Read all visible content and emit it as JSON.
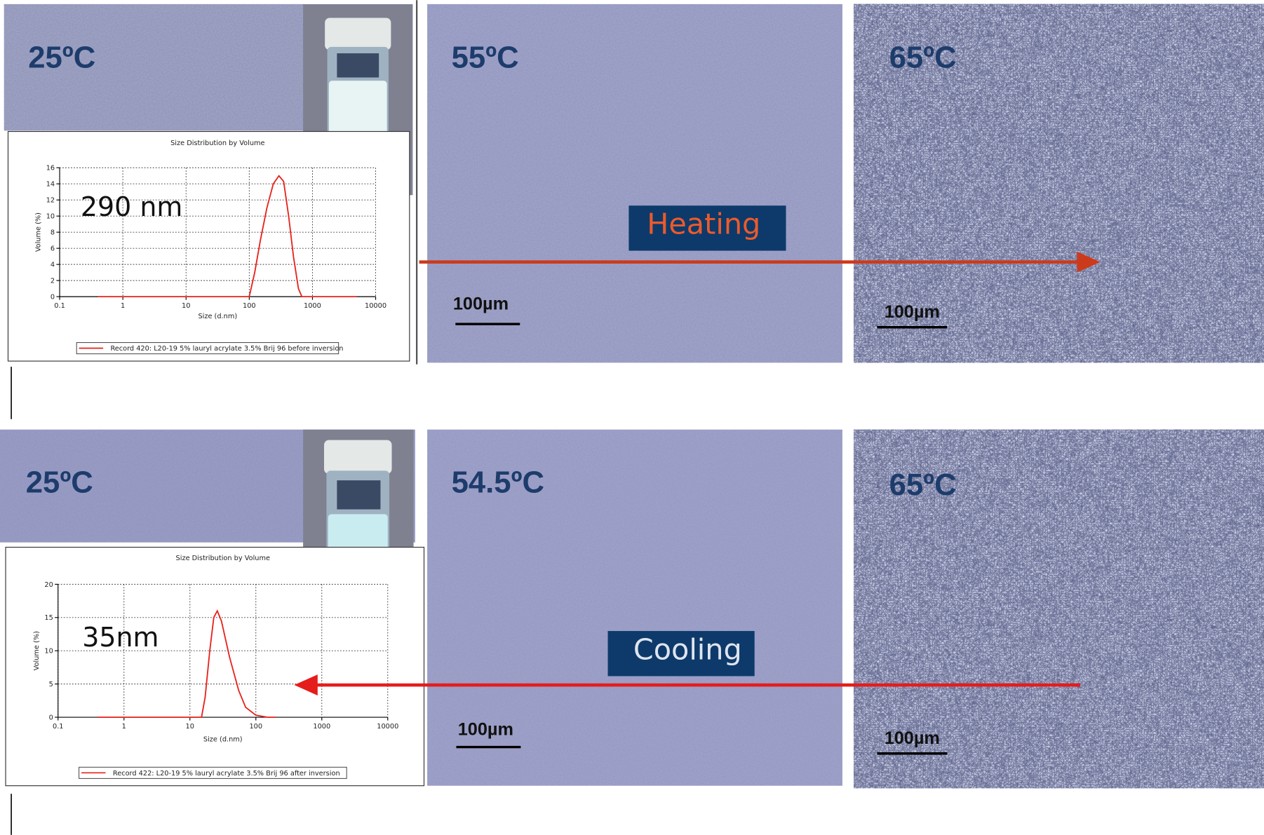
{
  "top_row": {
    "temperatures": [
      "25ºC",
      "55ºC",
      "65ºC"
    ],
    "scale_bars": [
      "100µm",
      "100µm"
    ],
    "process": "Heating"
  },
  "bottom_row": {
    "temperatures": [
      "25ºC",
      "54.5ºC",
      "65ºC"
    ],
    "scale_bars": [
      "100µm",
      "100µm"
    ],
    "process": "Cooling"
  },
  "chart_data": [
    {
      "type": "line",
      "title": "Size Distribution by Volume",
      "x_label": "Size (d.nm)",
      "y_label": "Volume (%)",
      "annotation": "290 nm",
      "xscale": "log",
      "xlim": [
        0.1,
        10000
      ],
      "xticks": [
        0.1,
        1,
        10,
        100,
        1000,
        10000
      ],
      "ylim": [
        0,
        16
      ],
      "yticks": [
        0,
        2,
        4,
        6,
        8,
        10,
        12,
        14,
        16
      ],
      "grid": true,
      "x": [
        0.4,
        100,
        122,
        150,
        190,
        240,
        295,
        350,
        420,
        500,
        600,
        680,
        5000
      ],
      "series": [
        {
          "name": "Record 420: L20-19 5% lauryl acrylate 3.5% Brij 96 before inversion",
          "color": "#e8221c",
          "values": [
            0,
            0,
            3,
            7,
            11,
            14,
            15,
            14.3,
            10,
            5,
            1,
            0,
            0
          ]
        }
      ]
    },
    {
      "type": "line",
      "title": "Size Distribution by Volume",
      "x_label": "Size (d.nm)",
      "y_label": "Volume (%)",
      "annotation": "35nm",
      "xscale": "log",
      "xlim": [
        0.1,
        10000
      ],
      "xticks": [
        0.1,
        1,
        10,
        100,
        1000,
        10000
      ],
      "ylim": [
        0,
        20
      ],
      "yticks": [
        0,
        5,
        10,
        15,
        20
      ],
      "grid": true,
      "x": [
        0.4,
        15,
        17,
        20,
        23,
        26,
        30,
        40,
        55,
        70,
        100,
        150,
        200
      ],
      "series": [
        {
          "name": "Record 422: L20-19 5% lauryl acrylate 3.5% Brij 96 after inversion",
          "color": "#e8221c",
          "values": [
            0,
            0,
            3,
            10,
            15,
            16,
            14.5,
            9,
            4,
            1.5,
            0.3,
            0,
            0
          ]
        }
      ]
    }
  ]
}
